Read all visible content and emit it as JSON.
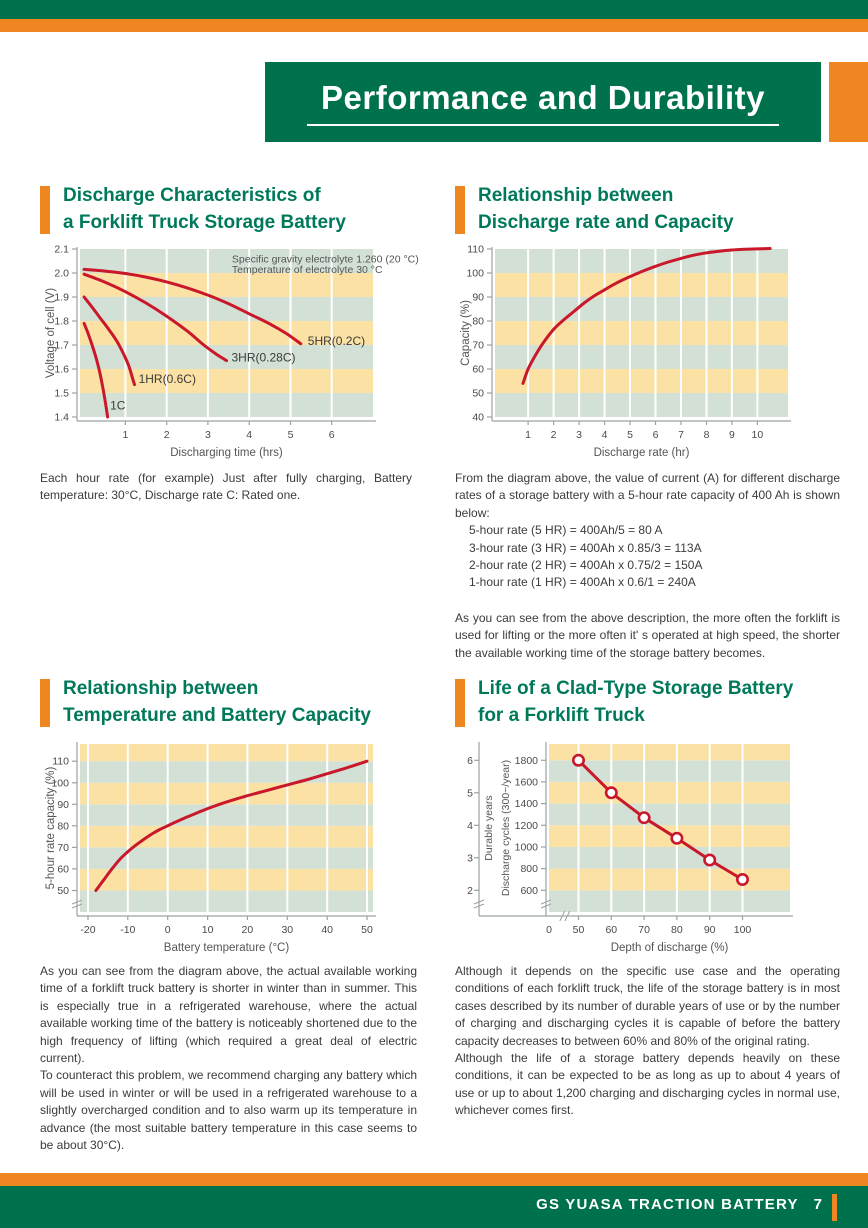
{
  "palette": {
    "green_dark": "#00714D",
    "green_heading": "#00795B",
    "orange": "#EE8722",
    "red": "#C9182B",
    "stripe_yellow": "#FBE2A4",
    "stripe_sage": "#D3E0D5"
  },
  "header": {
    "title": "Performance and Durability"
  },
  "footer": {
    "brand": "GS YUASA TRACTION BATTERY",
    "page_number": "7"
  },
  "sections": [
    {
      "title_lines": [
        "Discharge Characteristics of",
        "a Forklift Truck Storage Battery"
      ],
      "paragraphs": [
        "Each hour rate (for example) Just after fully charging, Battery temperature: 30°C, Discharge rate C: Rated one."
      ]
    },
    {
      "title_lines": [
        "Relationship between",
        "Discharge rate and Capacity"
      ],
      "intro": "From the diagram above, the value of current (A) for different discharge rates of a storage battery with a 5-hour rate capacity of 400 Ah is shown below:",
      "list_items": [
        "5-hour rate (5 HR) = 400Ah/5 = 80 A",
        "3-hour rate (3 HR) = 400Ah x 0.85/3 = 113A",
        "2-hour rate (2 HR) = 400Ah x 0.75/2 = 150A",
        "1-hour rate (1 HR) = 400Ah x 0.6/1 = 240A"
      ],
      "outro": "As you can see from the above description, the more often the forklift is used for lifting or the more often it' s operated at high speed, the shorter the available working time of the storage battery becomes."
    },
    {
      "title_lines": [
        "Relationship between",
        "Temperature and Battery Capacity"
      ],
      "paragraphs": [
        "As you can see from the diagram above, the actual available working time of a forklift truck battery is shorter in winter than in summer. This is especially true in a refrigerated warehouse, where the actual available working time of the battery is noticeably shortened due to the high frequency of lifting (which required a great deal of electric current).",
        "To counteract this problem, we recommend charging any battery which will be used in winter or will be used in a refrigerated warehouse to a slightly overcharged condition and to also warm up its temperature in advance (the most suitable battery temperature in this case seems to be about 30°C)."
      ]
    },
    {
      "title_lines": [
        "Life of a Clad-Type Storage Battery",
        "for a Forklift Truck"
      ],
      "paragraphs": [
        "Although it depends on the specific use case and the operating conditions of each forklift truck, the life of the storage battery is in most cases described by its number of durable years of use or by the number of charging and discharging cycles it is capable of before the battery capacity decreases to between 60% and 80% of the original rating.",
        "Although the life of a storage battery depends heavily on these conditions, it can be expected to be as long as up to about 4 years of use or up to about 1,200 charging and discharging cycles in normal use, whichever comes first."
      ]
    }
  ],
  "chart_data": [
    {
      "type": "line",
      "title": "Discharge Characteristics of a Forklift Truck Storage Battery",
      "xlabel": "Discharging time (hrs)",
      "ylabel": "Voltage of cell (V)",
      "xlim": [
        -0.1,
        7.0
      ],
      "ylim": [
        1.4,
        2.1
      ],
      "xticks": [
        1,
        2,
        3,
        4,
        5,
        6
      ],
      "yticks": [
        1.4,
        1.5,
        1.6,
        1.7,
        1.8,
        1.9,
        2.0,
        2.1
      ],
      "ytick_labels": [
        "1.4",
        "1.5",
        "1.6",
        "1.7",
        "1.8",
        "1.9",
        "2.0",
        "2.1"
      ],
      "stripe_size": 0.1,
      "grid": "vertical-white",
      "annotations": [
        {
          "text": "Specific gravity electrolyte 1.260 (20 °C)",
          "x": 3.58,
          "y": 2.044
        },
        {
          "text": "Temperature of electrolyte 30 °C",
          "x": 3.58,
          "y": 2.0
        }
      ],
      "series": [
        {
          "name": "5HR(0.2C)",
          "label_at": [
            5.42,
            1.7
          ],
          "points": [
            [
              0,
              2.015
            ],
            [
              0.5,
              2.008
            ],
            [
              1,
              1.998
            ],
            [
              1.5,
              1.983
            ],
            [
              2,
              1.963
            ],
            [
              2.5,
              1.938
            ],
            [
              3,
              1.908
            ],
            [
              3.5,
              1.872
            ],
            [
              4,
              1.83
            ],
            [
              4.5,
              1.788
            ],
            [
              4.9,
              1.748
            ],
            [
              5.25,
              1.705
            ]
          ]
        },
        {
          "name": "3HR(0.28C)",
          "label_at": [
            3.57,
            1.632
          ],
          "points": [
            [
              0,
              1.995
            ],
            [
              0.5,
              1.962
            ],
            [
              1,
              1.922
            ],
            [
              1.5,
              1.875
            ],
            [
              2,
              1.82
            ],
            [
              2.5,
              1.758
            ],
            [
              2.9,
              1.7
            ],
            [
              3.2,
              1.662
            ],
            [
              3.45,
              1.635
            ]
          ]
        },
        {
          "name": "1HR(0.6C)",
          "label_at": [
            1.32,
            1.542
          ],
          "points": [
            [
              0,
              1.9
            ],
            [
              0.2,
              1.856
            ],
            [
              0.4,
              1.81
            ],
            [
              0.6,
              1.764
            ],
            [
              0.8,
              1.714
            ],
            [
              0.95,
              1.665
            ],
            [
              1.08,
              1.614
            ],
            [
              1.18,
              1.558
            ],
            [
              1.22,
              1.535
            ]
          ]
        },
        {
          "name": "1C",
          "label_at": [
            0.63,
            1.432
          ],
          "points": [
            [
              0,
              1.79
            ],
            [
              0.1,
              1.746
            ],
            [
              0.2,
              1.696
            ],
            [
              0.3,
              1.64
            ],
            [
              0.38,
              1.585
            ],
            [
              0.45,
              1.525
            ],
            [
              0.52,
              1.455
            ],
            [
              0.57,
              1.4
            ]
          ]
        }
      ]
    },
    {
      "type": "line",
      "title": "Relationship between Discharge rate and Capacity",
      "xlabel": "Discharge rate (hr)",
      "ylabel": "Capacity (%)",
      "xlim": [
        -0.3,
        11.2
      ],
      "ylim": [
        40,
        110
      ],
      "xticks": [
        1,
        2,
        3,
        4,
        5,
        6,
        7,
        8,
        9,
        10
      ],
      "yticks": [
        40,
        50,
        60,
        70,
        80,
        90,
        100,
        110
      ],
      "stripe_size": 10,
      "grid": "vertical-white",
      "series": [
        {
          "name": "",
          "points": [
            [
              0.8,
              54
            ],
            [
              1,
              60
            ],
            [
              1.3,
              66
            ],
            [
              1.6,
              71
            ],
            [
              2,
              76.5
            ],
            [
              2.4,
              80.5
            ],
            [
              2.8,
              84
            ],
            [
              3.2,
              87.5
            ],
            [
              3.6,
              90.5
            ],
            [
              4,
              93
            ],
            [
              4.5,
              96
            ],
            [
              5,
              98.5
            ],
            [
              5.5,
              100.8
            ],
            [
              6,
              102.8
            ],
            [
              6.5,
              104.6
            ],
            [
              7,
              106.1
            ],
            [
              7.5,
              107.4
            ],
            [
              8,
              108.4
            ],
            [
              8.5,
              109.1
            ],
            [
              9,
              109.6
            ],
            [
              9.5,
              109.9
            ],
            [
              10.5,
              110.2
            ]
          ]
        }
      ]
    },
    {
      "type": "line",
      "title": "Relationship between Temperature and Battery Capacity",
      "xlabel": "Battery temperature (°C)",
      "ylabel": "5-hour rate capacity (%)",
      "xlim": [
        -22,
        51.5
      ],
      "ylim": [
        40,
        118
      ],
      "xticks": [
        -20,
        -10,
        0,
        10,
        20,
        30,
        40,
        50
      ],
      "yticks": [
        50,
        60,
        70,
        80,
        90,
        100,
        110
      ],
      "stripe_size": 10,
      "grid": "vertical-white",
      "y_break": true,
      "series": [
        {
          "name": "",
          "points": [
            [
              -18,
              50
            ],
            [
              -16,
              55
            ],
            [
              -14,
              60
            ],
            [
              -12,
              64.5
            ],
            [
              -10,
              68
            ],
            [
              -8,
              71
            ],
            [
              -6,
              73.7
            ],
            [
              -4,
              76.2
            ],
            [
              -2,
              78.3
            ],
            [
              0,
              80
            ],
            [
              2,
              81.8
            ],
            [
              4,
              83.4
            ],
            [
              6,
              85
            ],
            [
              8,
              86.5
            ],
            [
              10,
              88
            ],
            [
              13,
              90
            ],
            [
              16,
              91.8
            ],
            [
              20,
              94
            ],
            [
              24,
              96
            ],
            [
              28,
              98
            ],
            [
              32,
              100
            ],
            [
              36,
              102
            ],
            [
              40,
              104.2
            ],
            [
              45,
              107
            ],
            [
              50,
              110
            ]
          ]
        }
      ]
    },
    {
      "type": "line",
      "title": "Life of a Clad-Type Storage Battery for a Forklift Truck",
      "xlabel": "Depth of discharge (%)",
      "ylabel": "Discharge cycles (300~/year)",
      "ylabel2": "Durable years",
      "xlim": [
        41,
        114.5
      ],
      "ylim": [
        400,
        1950
      ],
      "xticks": [
        50,
        60,
        70,
        80,
        90,
        100
      ],
      "yticks": [
        600,
        800,
        1000,
        1200,
        1400,
        1600,
        1800
      ],
      "yticks2": [
        {
          "label": "2",
          "value": 600
        },
        {
          "label": "3",
          "value": 900
        },
        {
          "label": "4",
          "value": 1200
        },
        {
          "label": "5",
          "value": 1500
        },
        {
          "label": "6",
          "value": 1800
        }
      ],
      "stripe_size": 200,
      "grid": "vertical-white",
      "y_break": true,
      "x_zero_label": "0",
      "x_break_at": 45.5,
      "series": [
        {
          "name": "",
          "markers": true,
          "points": [
            [
              50,
              1800
            ],
            [
              60,
              1500
            ],
            [
              70,
              1270
            ],
            [
              80,
              1080
            ],
            [
              90,
              880
            ],
            [
              100,
              700
            ]
          ]
        }
      ]
    }
  ]
}
